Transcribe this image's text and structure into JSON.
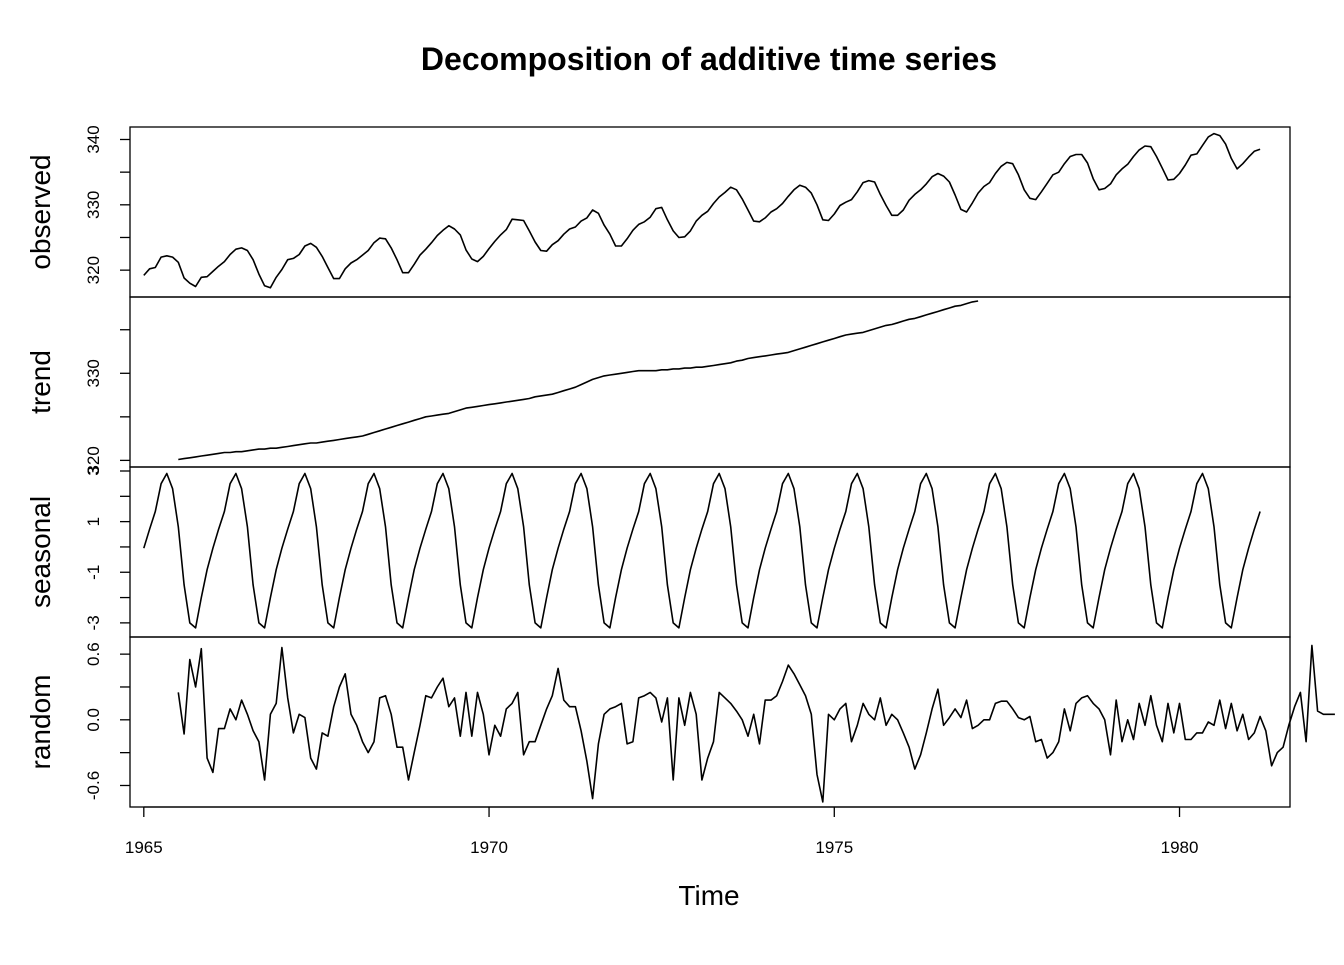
{
  "chart_data": {
    "type": "line",
    "title": "Decomposition of additive time series",
    "xlabel": "Time",
    "xlim": [
      1964.8,
      1981.6
    ],
    "x_ticks": [
      1965,
      1970,
      1975,
      1980
    ],
    "x_tick_labels": [
      "1965",
      "1970",
      "1975",
      "1980"
    ],
    "time_start": 1965.0,
    "frequency": 12,
    "panels": [
      {
        "name": "observed",
        "label": "observed",
        "ylim": [
          316.5,
          341.3
        ],
        "y_ticks": [
          320,
          325,
          330,
          335,
          340
        ],
        "y_tick_labels": [
          "320",
          "",
          "330",
          "",
          "340"
        ],
        "values": [
          319.2,
          320.2,
          320.4,
          322.0,
          322.2,
          322.0,
          321.2,
          318.8,
          318.0,
          317.5,
          318.9,
          319.0,
          319.8,
          320.6,
          321.3,
          322.4,
          323.2,
          323.4,
          323.0,
          321.6,
          319.4,
          317.6,
          317.3,
          318.9,
          320.1,
          321.6,
          321.8,
          322.4,
          323.7,
          324.1,
          323.5,
          322.1,
          320.4,
          318.7,
          318.7,
          320.2,
          321.1,
          321.6,
          322.3,
          323.0,
          324.2,
          324.9,
          324.8,
          323.4,
          321.6,
          319.6,
          319.6,
          320.9,
          322.3,
          323.2,
          324.2,
          325.3,
          326.1,
          326.8,
          326.3,
          325.4,
          323.1,
          321.7,
          321.3,
          322.1,
          323.3,
          324.4,
          325.4,
          326.2,
          327.8,
          327.7,
          327.6,
          326.0,
          324.3,
          323.0,
          322.9,
          323.9,
          324.5,
          325.5,
          326.3,
          326.6,
          327.5,
          328.0,
          329.2,
          328.7,
          326.9,
          325.5,
          323.7,
          323.7,
          324.8,
          326.1,
          327.0,
          327.4,
          328.1,
          329.4,
          329.6,
          327.7,
          326.0,
          325.0,
          325.1,
          326.0,
          327.5,
          328.4,
          329.0,
          330.2,
          331.2,
          331.9,
          332.7,
          332.3,
          330.9,
          329.2,
          327.5,
          327.4,
          328.0,
          328.9,
          329.4,
          330.2,
          331.3,
          332.3,
          333.0,
          332.7,
          331.8,
          330.0,
          327.7,
          327.6,
          328.6,
          329.9,
          330.4,
          330.8,
          332.0,
          333.4,
          333.7,
          333.5,
          331.6,
          329.9,
          328.4,
          328.4,
          329.2,
          330.7,
          331.6,
          332.3,
          333.2,
          334.3,
          334.8,
          334.4,
          333.5,
          331.5,
          329.3,
          328.9,
          330.3,
          331.8,
          332.8,
          333.4,
          334.8,
          335.9,
          336.5,
          336.3,
          334.6,
          332.3,
          331.0,
          330.8,
          332.0,
          333.3,
          334.6,
          335.0,
          336.3,
          337.4,
          337.7,
          337.7,
          336.4,
          334.0,
          332.3,
          332.5,
          333.2,
          334.6,
          335.5,
          336.2,
          337.4,
          338.4,
          339.0,
          338.9,
          337.4,
          335.6,
          333.8,
          333.9,
          334.8,
          336.1,
          337.6,
          337.8,
          339.1,
          340.4,
          340.9,
          340.6,
          339.3,
          337.1,
          335.5,
          336.3,
          337.3,
          338.2,
          338.5
        ]
      },
      {
        "name": "trend",
        "label": "trend",
        "ylim": [
          319.7,
          338.3
        ],
        "y_ticks": [
          320,
          325,
          330,
          335
        ],
        "y_tick_labels": [
          "320",
          "",
          "330",
          ""
        ],
        "values": [
          null,
          null,
          null,
          null,
          null,
          null,
          320.1,
          320.2,
          320.3,
          320.4,
          320.5,
          320.6,
          320.7,
          320.8,
          320.9,
          320.9,
          321.0,
          321.0,
          321.1,
          321.2,
          321.3,
          321.3,
          321.4,
          321.4,
          321.5,
          321.6,
          321.7,
          321.8,
          321.9,
          322.0,
          322.0,
          322.1,
          322.2,
          322.3,
          322.4,
          322.5,
          322.6,
          322.7,
          322.8,
          323.0,
          323.2,
          323.4,
          323.6,
          323.8,
          324.0,
          324.2,
          324.4,
          324.6,
          324.8,
          325.0,
          325.1,
          325.2,
          325.3,
          325.4,
          325.6,
          325.8,
          326.0,
          326.1,
          326.2,
          326.3,
          326.4,
          326.5,
          326.6,
          326.7,
          326.8,
          326.9,
          327.0,
          327.1,
          327.3,
          327.4,
          327.5,
          327.6,
          327.8,
          328.0,
          328.2,
          328.4,
          328.7,
          329.0,
          329.3,
          329.5,
          329.7,
          329.8,
          329.9,
          330.0,
          330.1,
          330.2,
          330.3,
          330.3,
          330.3,
          330.3,
          330.4,
          330.4,
          330.5,
          330.5,
          330.6,
          330.6,
          330.7,
          330.7,
          330.8,
          330.9,
          331.0,
          331.1,
          331.2,
          331.4,
          331.5,
          331.7,
          331.8,
          331.9,
          332.0,
          332.1,
          332.2,
          332.3,
          332.4,
          332.6,
          332.8,
          333.0,
          333.2,
          333.4,
          333.6,
          333.8,
          334.0,
          334.2,
          334.4,
          334.5,
          334.6,
          334.7,
          334.9,
          335.1,
          335.3,
          335.5,
          335.6,
          335.8,
          336.0,
          336.2,
          336.3,
          336.5,
          336.7,
          336.9,
          337.1,
          337.3,
          337.5,
          337.7,
          337.8,
          338.0,
          338.2,
          338.3,
          null,
          null,
          null,
          null,
          null,
          null,
          null,
          null,
          null
        ]
      },
      {
        "name": "seasonal",
        "label": "seasonal",
        "ylim": [
          -3.4,
          3.0
        ],
        "y_ticks": [
          -3,
          -2,
          -1,
          0,
          1,
          2,
          3
        ],
        "y_tick_labels": [
          "-3",
          "",
          "-1",
          "",
          "1",
          "",
          "3"
        ],
        "values": [
          -0.05,
          0.7,
          1.4,
          2.5,
          2.9,
          2.3,
          0.8,
          -1.5,
          -3.0,
          -3.2,
          -2.0,
          -0.9,
          -0.05,
          0.7,
          1.4,
          2.5,
          2.9,
          2.3,
          0.8,
          -1.5,
          -3.0,
          -3.2,
          -2.0,
          -0.9,
          -0.05,
          0.7,
          1.4,
          2.5,
          2.9,
          2.3,
          0.8,
          -1.5,
          -3.0,
          -3.2,
          -2.0,
          -0.9,
          -0.05,
          0.7,
          1.4,
          2.5,
          2.9,
          2.3,
          0.8,
          -1.5,
          -3.0,
          -3.2,
          -2.0,
          -0.9,
          -0.05,
          0.7,
          1.4,
          2.5,
          2.9,
          2.3,
          0.8,
          -1.5,
          -3.0,
          -3.2,
          -2.0,
          -0.9,
          -0.05,
          0.7,
          1.4,
          2.5,
          2.9,
          2.3,
          0.8,
          -1.5,
          -3.0,
          -3.2,
          -2.0,
          -0.9,
          -0.05,
          0.7,
          1.4,
          2.5,
          2.9,
          2.3,
          0.8,
          -1.5,
          -3.0,
          -3.2,
          -2.0,
          -0.9,
          -0.05,
          0.7,
          1.4,
          2.5,
          2.9,
          2.3,
          0.8,
          -1.5,
          -3.0,
          -3.2,
          -2.0,
          -0.9,
          -0.05,
          0.7,
          1.4,
          2.5,
          2.9,
          2.3,
          0.8,
          -1.5,
          -3.0,
          -3.2,
          -2.0,
          -0.9,
          -0.05,
          0.7,
          1.4,
          2.5,
          2.9,
          2.3,
          0.8,
          -1.5,
          -3.0,
          -3.2,
          -2.0,
          -0.9,
          -0.05,
          0.7,
          1.4,
          2.5,
          2.9,
          2.3,
          0.8,
          -1.5,
          -3.0,
          -3.2,
          -2.0,
          -0.9,
          -0.05,
          0.7,
          1.4,
          2.5,
          2.9,
          2.3,
          0.8,
          -1.5,
          -3.0,
          -3.2,
          -2.0,
          -0.9,
          -0.05,
          0.7,
          1.4,
          2.5,
          2.9,
          2.3,
          0.8,
          -1.5,
          -3.0,
          -3.2,
          -2.0,
          -0.9,
          -0.05,
          0.7,
          1.4,
          2.5,
          2.9,
          2.3,
          0.8,
          -1.5,
          -3.0,
          -3.2,
          -2.0,
          -0.9,
          -0.05,
          0.7,
          1.4,
          2.5,
          2.9,
          2.3,
          0.8,
          -1.5,
          -3.0,
          -3.2,
          -2.0,
          -0.9,
          -0.05,
          0.7,
          1.4,
          2.5,
          2.9,
          2.3,
          0.8,
          -1.5,
          -3.0,
          -3.2,
          -2.0,
          -0.9,
          -0.05,
          0.7,
          1.4
        ]
      },
      {
        "name": "random",
        "label": "random",
        "ylim": [
          -0.76,
          0.72
        ],
        "y_ticks": [
          -0.6,
          -0.3,
          0.0,
          0.3,
          0.6
        ],
        "y_tick_labels": [
          "-0.6",
          "",
          "0.0",
          "",
          "0.6"
        ],
        "values": [
          null,
          null,
          null,
          null,
          null,
          null,
          0.25,
          -0.13,
          0.55,
          0.3,
          0.65,
          -0.35,
          -0.48,
          -0.08,
          -0.08,
          0.1,
          0.0,
          0.18,
          0.05,
          -0.1,
          -0.2,
          -0.55,
          0.05,
          0.15,
          0.66,
          0.2,
          -0.12,
          0.05,
          0.02,
          -0.35,
          -0.45,
          -0.12,
          -0.15,
          0.12,
          0.3,
          0.42,
          0.05,
          -0.05,
          -0.2,
          -0.3,
          -0.2,
          0.2,
          0.22,
          0.05,
          -0.25,
          -0.25,
          -0.55,
          -0.3,
          -0.05,
          0.22,
          0.2,
          0.3,
          0.38,
          0.12,
          0.2,
          -0.15,
          0.25,
          -0.15,
          0.25,
          0.05,
          -0.32,
          -0.05,
          -0.15,
          0.1,
          0.15,
          0.25,
          -0.32,
          -0.2,
          -0.2,
          -0.05,
          0.1,
          0.22,
          0.47,
          0.18,
          0.12,
          0.12,
          -0.1,
          -0.38,
          -0.72,
          -0.22,
          0.05,
          0.1,
          0.12,
          0.15,
          -0.22,
          -0.2,
          0.2,
          0.22,
          0.25,
          0.2,
          -0.02,
          0.2,
          -0.55,
          0.2,
          -0.05,
          0.25,
          0.05,
          -0.55,
          -0.35,
          -0.2,
          0.25,
          0.2,
          0.15,
          0.08,
          0.0,
          -0.15,
          0.05,
          -0.22,
          0.18,
          0.18,
          0.22,
          0.35,
          0.5,
          0.42,
          0.32,
          0.22,
          0.05,
          -0.5,
          -0.75,
          0.05,
          0.0,
          0.1,
          0.15,
          -0.2,
          -0.05,
          0.15,
          0.05,
          0.0,
          0.2,
          -0.05,
          0.05,
          0.0,
          -0.12,
          -0.25,
          -0.45,
          -0.32,
          -0.12,
          0.1,
          0.28,
          -0.05,
          0.02,
          0.1,
          0.02,
          0.18,
          -0.08,
          -0.05,
          0.0,
          0.0,
          0.15,
          0.17,
          0.17,
          0.1,
          0.02,
          0.0,
          0.03,
          -0.2,
          -0.18,
          -0.35,
          -0.3,
          -0.2,
          0.1,
          -0.1,
          0.15,
          0.2,
          0.22,
          0.15,
          0.1,
          0.0,
          -0.32,
          0.18,
          -0.2,
          0.0,
          -0.18,
          0.15,
          -0.05,
          0.22,
          -0.05,
          -0.2,
          0.15,
          -0.12,
          0.15,
          -0.18,
          -0.18,
          -0.12,
          -0.12,
          -0.02,
          -0.05,
          0.18,
          -0.08,
          0.15,
          -0.1,
          0.05,
          -0.18,
          -0.12,
          0.03,
          -0.1,
          -0.42,
          -0.3,
          -0.25,
          -0.05,
          0.12,
          0.25,
          -0.2,
          0.68,
          0.08,
          0.05,
          0.05,
          0.05,
          null,
          null,
          null,
          null,
          null,
          null,
          null,
          null,
          null
        ]
      }
    ]
  }
}
